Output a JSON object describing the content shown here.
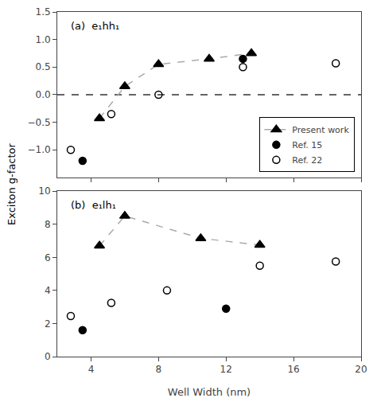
{
  "chart_data": [
    {
      "type": "scatter",
      "annotations": [
        {
          "text": "(a)  e₁hh₁"
        }
      ],
      "ylabel": "Exciton g-factor",
      "xlim": [
        2,
        20
      ],
      "xticks": [
        4,
        8,
        12,
        16,
        20
      ],
      "ylim": [
        -1.5,
        1.5
      ],
      "yticks": [
        {
          "value": -1.0,
          "label": "−1.0"
        },
        {
          "value": -0.5,
          "label": "−0.5"
        },
        {
          "value": 0.0,
          "label": "0.0"
        },
        0.5,
        {
          "value": 1.0,
          "label": "1.0"
        },
        1.5
      ],
      "tick_labels": "y",
      "grid": false,
      "legend": "lower right",
      "hlines": [
        {
          "y": 0,
          "color": "#333333",
          "line_style": "dashed"
        }
      ],
      "series": [
        {
          "name": "Present work",
          "x": [
            4.5,
            6.0,
            8.0,
            11.0,
            13.5
          ],
          "values": [
            -0.43,
            0.15,
            0.55,
            0.65,
            0.75
          ],
          "color": "black",
          "line_color": "#aaaaaa",
          "line_style": "dashed",
          "marker": "triangle-up"
        },
        {
          "name": "Ref. 15",
          "x": [
            3.5,
            13.0
          ],
          "values": [
            -1.2,
            0.65
          ],
          "color": "black",
          "marker": "circle"
        },
        {
          "name": "Ref. 22",
          "x": [
            2.8,
            5.2,
            8.0,
            13.0,
            18.5
          ],
          "values": [
            -1.0,
            -0.35,
            0.0,
            0.5,
            0.57
          ],
          "color": "black",
          "marker": "circle-open"
        }
      ]
    },
    {
      "type": "scatter",
      "annotations": [
        {
          "text": "(b)  e₁lh₁"
        }
      ],
      "xlabel": "Well Width (nm)",
      "xlim": [
        2,
        20
      ],
      "xticks": [
        4,
        8,
        12,
        16,
        20
      ],
      "ylim": [
        0,
        10
      ],
      "yticks": [
        0,
        2,
        4,
        6,
        8,
        10
      ],
      "grid": false,
      "series": [
        {
          "name": "Present work",
          "x": [
            4.5,
            6.0,
            10.5,
            14.0
          ],
          "values": [
            6.7,
            8.5,
            7.15,
            6.75
          ],
          "color": "black",
          "line_color": "#aaaaaa",
          "line_style": "dashed",
          "marker": "triangle-up"
        },
        {
          "name": "Ref. 15",
          "x": [
            3.5,
            12.0
          ],
          "values": [
            1.6,
            2.9
          ],
          "color": "black",
          "marker": "circle"
        },
        {
          "name": "Ref. 22",
          "x": [
            2.8,
            5.2,
            8.5,
            14.0,
            18.5
          ],
          "values": [
            2.45,
            3.25,
            4.0,
            5.5,
            5.75
          ],
          "color": "black",
          "marker": "circle-open"
        }
      ]
    }
  ]
}
